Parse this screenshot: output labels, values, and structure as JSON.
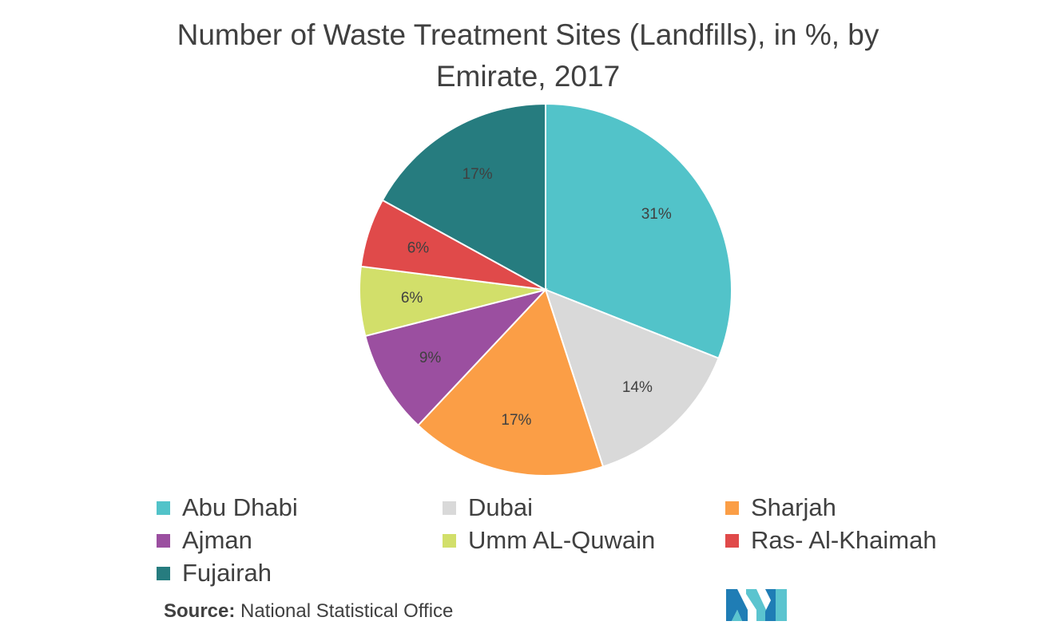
{
  "chart_data": {
    "type": "pie",
    "title_lines": [
      "Number of Waste Treatment Sites (Landfills), in %, by",
      "Emirate, 2017"
    ],
    "slices": [
      {
        "name": "Abu Dhabi",
        "value": 31,
        "label": "31%",
        "color": "#52C3C9"
      },
      {
        "name": "Dubai",
        "value": 14,
        "label": "14%",
        "color": "#D9D9D9"
      },
      {
        "name": "Sharjah",
        "value": 17,
        "label": "17%",
        "color": "#FB9E46"
      },
      {
        "name": "Ajman",
        "value": 9,
        "label": "9%",
        "color": "#9B4FA0"
      },
      {
        "name": "Umm AL-Quwain",
        "value": 6,
        "label": "6%",
        "color": "#D2DF6A"
      },
      {
        "name": "Ras- Al-Khaimah",
        "value": 6,
        "label": "6%",
        "color": "#E04A4A"
      },
      {
        "name": "Fujairah",
        "value": 17,
        "label": "17%",
        "color": "#267C7F"
      }
    ],
    "legend_position": "bottom"
  },
  "source": {
    "label": "Source:",
    "text": "National Statistical Office"
  },
  "logo": {
    "icon": "mordor-intelligence-logo-icon",
    "colors": [
      "#1F7DB5",
      "#5BC4CF"
    ]
  }
}
